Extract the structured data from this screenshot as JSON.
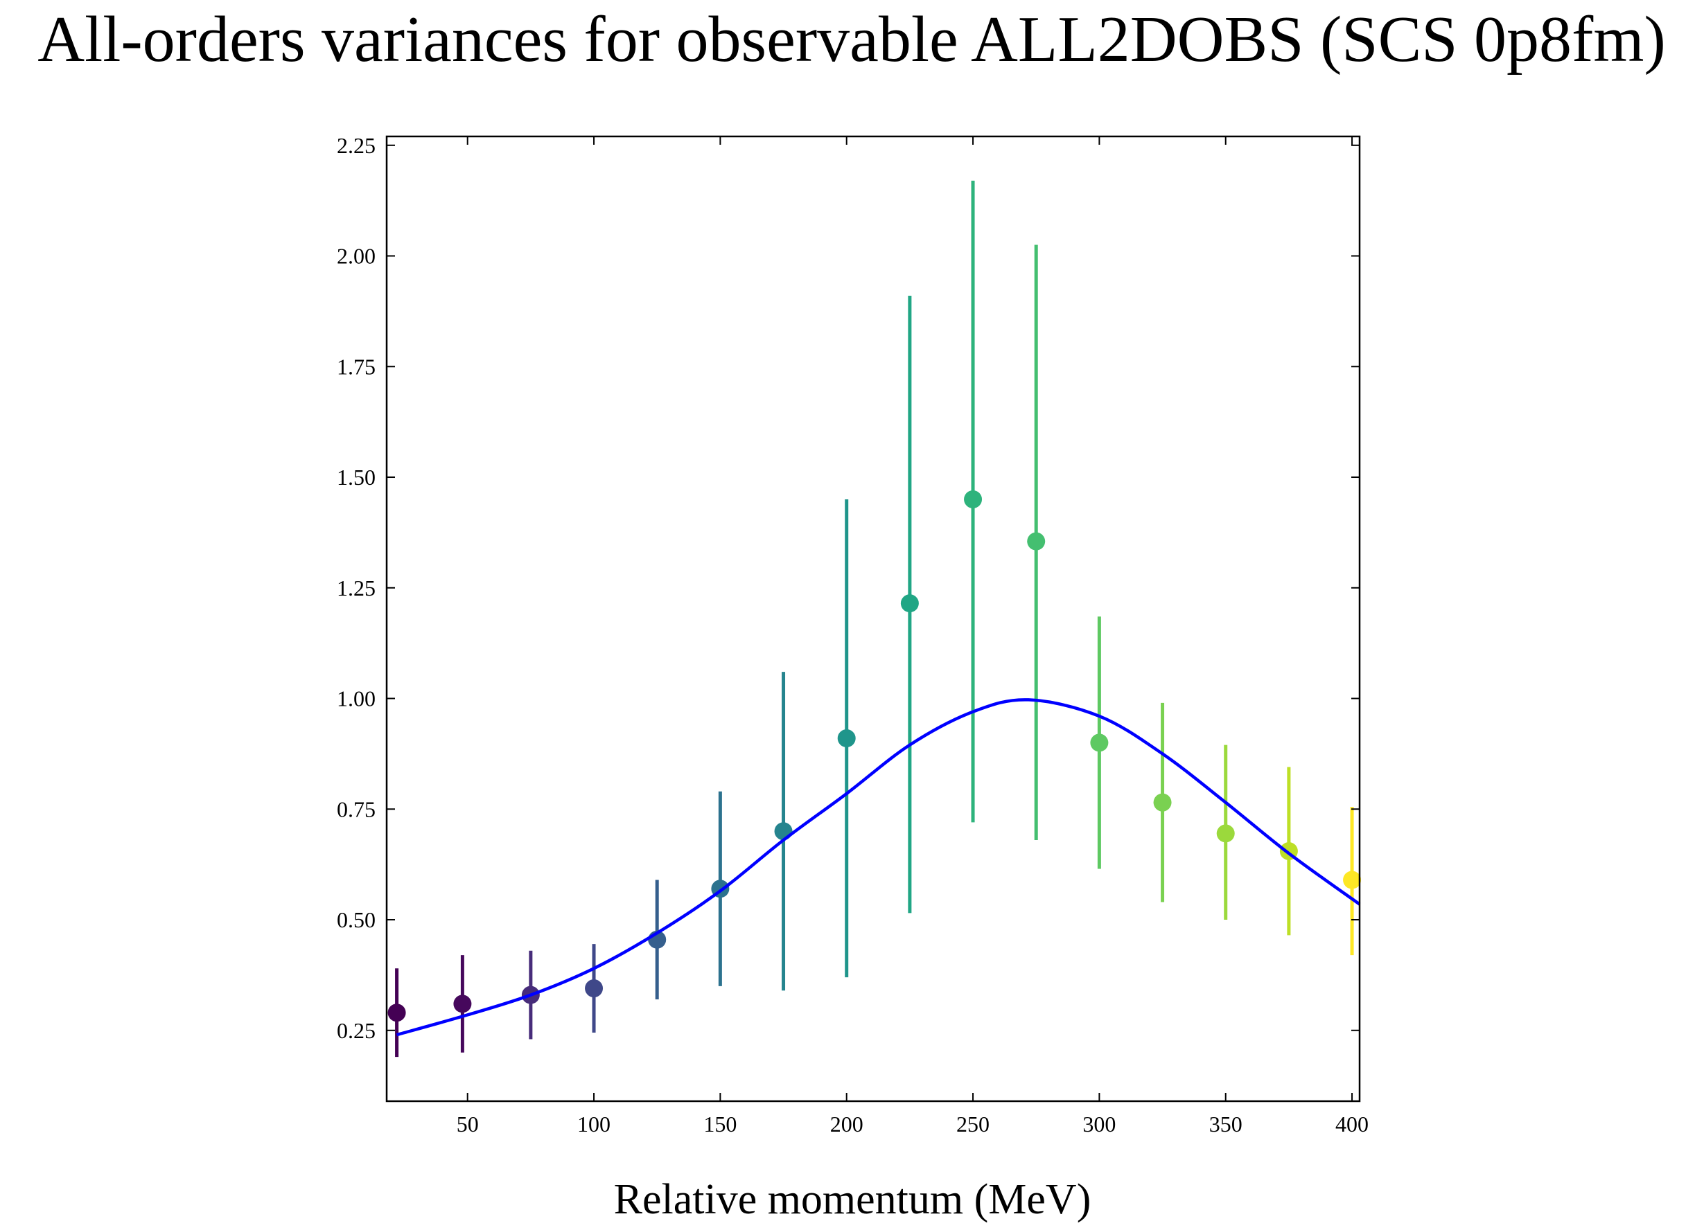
{
  "chart_data": {
    "type": "scatter",
    "title": "All-orders variances for observable ALL2DOBS (SCS 0p8fm)",
    "xlabel": "Relative momentum (MeV)",
    "ylabel": "",
    "xlim": [
      18,
      403
    ],
    "ylim": [
      0.09,
      2.27
    ],
    "grid": false,
    "legend": "none",
    "x_ticks": [
      50,
      100,
      150,
      200,
      250,
      300,
      350,
      400
    ],
    "x_tick_labels": [
      "50",
      "100",
      "150",
      "200",
      "250",
      "300",
      "350",
      "400"
    ],
    "y_ticks": [
      0.25,
      0.5,
      0.75,
      1.0,
      1.25,
      1.5,
      1.75,
      2.0,
      2.25
    ],
    "y_tick_labels": [
      "0.25",
      "0.50",
      "0.75",
      "1.00",
      "1.25",
      "1.50",
      "1.75",
      "2.00",
      "2.25"
    ],
    "series": [
      {
        "kind": "errorbar",
        "colormap": "viridis",
        "points": [
          {
            "x": 22,
            "y": 0.29,
            "yerr_low": 0.19,
            "yerr_high": 0.39,
            "color": "#440154"
          },
          {
            "x": 48,
            "y": 0.31,
            "yerr_low": 0.2,
            "yerr_high": 0.42,
            "color": "#46085c"
          },
          {
            "x": 75,
            "y": 0.33,
            "yerr_low": 0.23,
            "yerr_high": 0.43,
            "color": "#472c7a"
          },
          {
            "x": 100,
            "y": 0.345,
            "yerr_low": 0.245,
            "yerr_high": 0.445,
            "color": "#3f4889"
          },
          {
            "x": 125,
            "y": 0.455,
            "yerr_low": 0.32,
            "yerr_high": 0.59,
            "color": "#355f8d"
          },
          {
            "x": 150,
            "y": 0.57,
            "yerr_low": 0.35,
            "yerr_high": 0.79,
            "color": "#2c728e"
          },
          {
            "x": 175,
            "y": 0.7,
            "yerr_low": 0.34,
            "yerr_high": 1.06,
            "color": "#25848e"
          },
          {
            "x": 200,
            "y": 0.91,
            "yerr_low": 0.37,
            "yerr_high": 1.45,
            "color": "#1f958b"
          },
          {
            "x": 225,
            "y": 1.215,
            "yerr_low": 0.515,
            "yerr_high": 1.91,
            "color": "#21a685"
          },
          {
            "x": 250,
            "y": 1.45,
            "yerr_low": 0.72,
            "yerr_high": 2.17,
            "color": "#2eb37c"
          },
          {
            "x": 275,
            "y": 1.355,
            "yerr_low": 0.68,
            "yerr_high": 2.025,
            "color": "#44bf70"
          },
          {
            "x": 300,
            "y": 0.9,
            "yerr_low": 0.615,
            "yerr_high": 1.185,
            "color": "#5ec962"
          },
          {
            "x": 325,
            "y": 0.765,
            "yerr_low": 0.54,
            "yerr_high": 0.99,
            "color": "#7ad151"
          },
          {
            "x": 350,
            "y": 0.695,
            "yerr_low": 0.5,
            "yerr_high": 0.895,
            "color": "#9bd93c"
          },
          {
            "x": 375,
            "y": 0.655,
            "yerr_low": 0.465,
            "yerr_high": 0.845,
            "color": "#bddf26"
          },
          {
            "x": 400,
            "y": 0.59,
            "yerr_low": 0.42,
            "yerr_high": 0.755,
            "color": "#fde725"
          }
        ]
      },
      {
        "kind": "line",
        "color": "#0000ff",
        "x": [
          22,
          50,
          75,
          100,
          125,
          150,
          175,
          200,
          225,
          250,
          272,
          300,
          325,
          350,
          375,
          403
        ],
        "y": [
          0.24,
          0.285,
          0.33,
          0.39,
          0.47,
          0.565,
          0.68,
          0.785,
          0.895,
          0.97,
          0.997,
          0.96,
          0.875,
          0.765,
          0.65,
          0.535
        ]
      }
    ]
  }
}
